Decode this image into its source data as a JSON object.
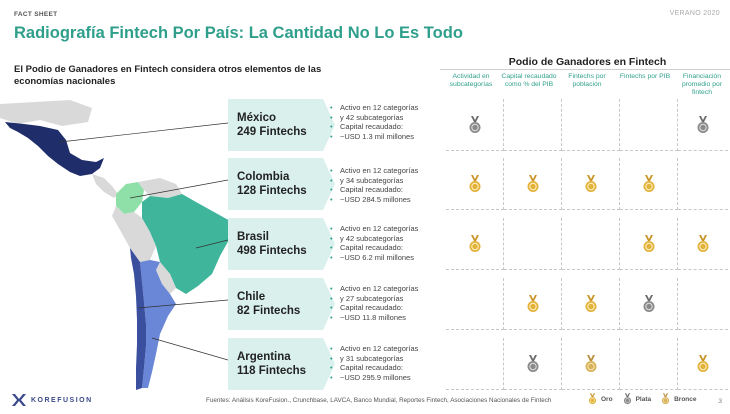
{
  "header": {
    "fact_sheet": "FACT SHEET",
    "season": "VERANO 2020",
    "title": "Radiografía Fintech Por País: La Cantidad No Lo Es Todo",
    "subtitle": "El Podio de Ganadores en Fintech considera otros elementos de las economías nacionales"
  },
  "podium": {
    "title": "Podio de Ganadores en Fintech",
    "columns": [
      "Actividad en subcategorías",
      "Capital recaudado como % del PIB",
      "Fintechs por población",
      "Fintechs por PIB",
      "Financiación promedio por fintech"
    ]
  },
  "countries": [
    {
      "name": "México",
      "count": "249 Fintechs",
      "stats": [
        "Activo en 12 categorías",
        "y 42 subcategorías",
        "Capital recaudado:",
        "~USD 1.3 mil millones"
      ],
      "medals": [
        "plata",
        "",
        "",
        "",
        "plata"
      ]
    },
    {
      "name": "Colombia",
      "count": "128 Fintechs",
      "stats": [
        "Activo en 12 categorías",
        "y 34 subcategorías",
        "Capital recaudado:",
        "~USD 284.5 millones"
      ],
      "medals": [
        "oro",
        "oro",
        "oro",
        "oro",
        ""
      ]
    },
    {
      "name": "Brasil",
      "count": "498 Fintechs",
      "stats": [
        "Activo en 12 categorías",
        "y 42 subcategorías",
        "Capital recaudado:",
        "~USD 6.2 mil millones"
      ],
      "medals": [
        "oro",
        "",
        "",
        "oro",
        "oro"
      ]
    },
    {
      "name": "Chile",
      "count": "82 Fintechs",
      "stats": [
        "Activo en 12 categorías",
        "y 27 subcategorías",
        "Capital recaudado:",
        "~USD 11.8 millones"
      ],
      "medals": [
        "",
        "oro",
        "oro",
        "plata",
        ""
      ]
    },
    {
      "name": "Argentina",
      "count": "118 Fintechs",
      "stats": [
        "Activo en 12 categorías",
        "y 31 subcategorías",
        "Capital recaudado:",
        "~USD 295.9 millones"
      ],
      "medals": [
        "",
        "plata",
        "bronce",
        "",
        "oro"
      ]
    }
  ],
  "footer": {
    "logo": "KOREFUSION",
    "sources": "Fuentes: Análisis KoreFusion., Crunchbase, LAVCA, Banco Mundial, Reportes Fintech, Asociaciones Nacionales de Fintech",
    "legend": [
      {
        "key": "oro",
        "label": "Oro"
      },
      {
        "key": "plata",
        "label": "Plata"
      },
      {
        "key": "bronce",
        "label": "Bronce"
      }
    ],
    "page": "3"
  },
  "colors": {
    "accent": "#2f9f8c",
    "box_fill": "#d9f0ed",
    "mexico": "#1f2d6b",
    "colombia": "#8fe0a8",
    "brasil": "#3fb59c",
    "chile": "#3a4f9e",
    "argentina": "#6a86d6",
    "land": "#d9d9d9",
    "oro": "#e3b23c",
    "plata": "#8a8a8a",
    "bronce": "#d8b25a"
  },
  "icons": {
    "medal": "medal-icon",
    "logo": "korefusion-logo-icon"
  }
}
